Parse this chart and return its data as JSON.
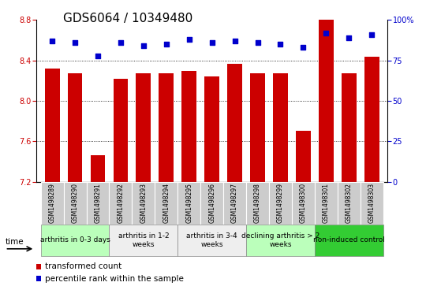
{
  "title": "GDS6064 / 10349480",
  "samples": [
    "GSM1498289",
    "GSM1498290",
    "GSM1498291",
    "GSM1498292",
    "GSM1498293",
    "GSM1498294",
    "GSM1498295",
    "GSM1498296",
    "GSM1498297",
    "GSM1498298",
    "GSM1498299",
    "GSM1498300",
    "GSM1498301",
    "GSM1498302",
    "GSM1498303"
  ],
  "bar_values": [
    8.32,
    8.27,
    7.46,
    8.22,
    8.27,
    8.27,
    8.3,
    8.24,
    8.37,
    8.27,
    8.27,
    7.7,
    8.8,
    8.27,
    8.44
  ],
  "dot_values": [
    87,
    86,
    78,
    86,
    84,
    85,
    88,
    86,
    87,
    86,
    85,
    83,
    92,
    89,
    91
  ],
  "bar_color": "#cc0000",
  "dot_color": "#0000cc",
  "bar_bottom": 7.2,
  "ylim_left": [
    7.2,
    8.8
  ],
  "ylim_right": [
    0,
    100
  ],
  "yticks_left": [
    7.2,
    7.6,
    8.0,
    8.4,
    8.8
  ],
  "yticks_right": [
    0,
    25,
    50,
    75,
    100
  ],
  "ytick_labels_right": [
    "0",
    "25",
    "50",
    "75",
    "100%"
  ],
  "grid_values": [
    7.6,
    8.0,
    8.4
  ],
  "groups": [
    {
      "label": "arthritis in 0-3 days",
      "start": 0,
      "end": 3,
      "color": "#bbffbb"
    },
    {
      "label": "arthritis in 1-2\nweeks",
      "start": 3,
      "end": 6,
      "color": "#eeeeee"
    },
    {
      "label": "arthritis in 3-4\nweeks",
      "start": 6,
      "end": 9,
      "color": "#eeeeee"
    },
    {
      "label": "declining arthritis > 2\nweeks",
      "start": 9,
      "end": 12,
      "color": "#bbffbb"
    },
    {
      "label": "non-induced control",
      "start": 12,
      "end": 15,
      "color": "#33cc33"
    }
  ],
  "legend_items": [
    {
      "label": "transformed count",
      "color": "#cc0000"
    },
    {
      "label": "percentile rank within the sample",
      "color": "#0000cc"
    }
  ],
  "title_fontsize": 11,
  "tick_fontsize": 7,
  "bar_label_fontsize": 5.5,
  "group_label_fontsize": 6.5,
  "legend_fontsize": 7.5
}
